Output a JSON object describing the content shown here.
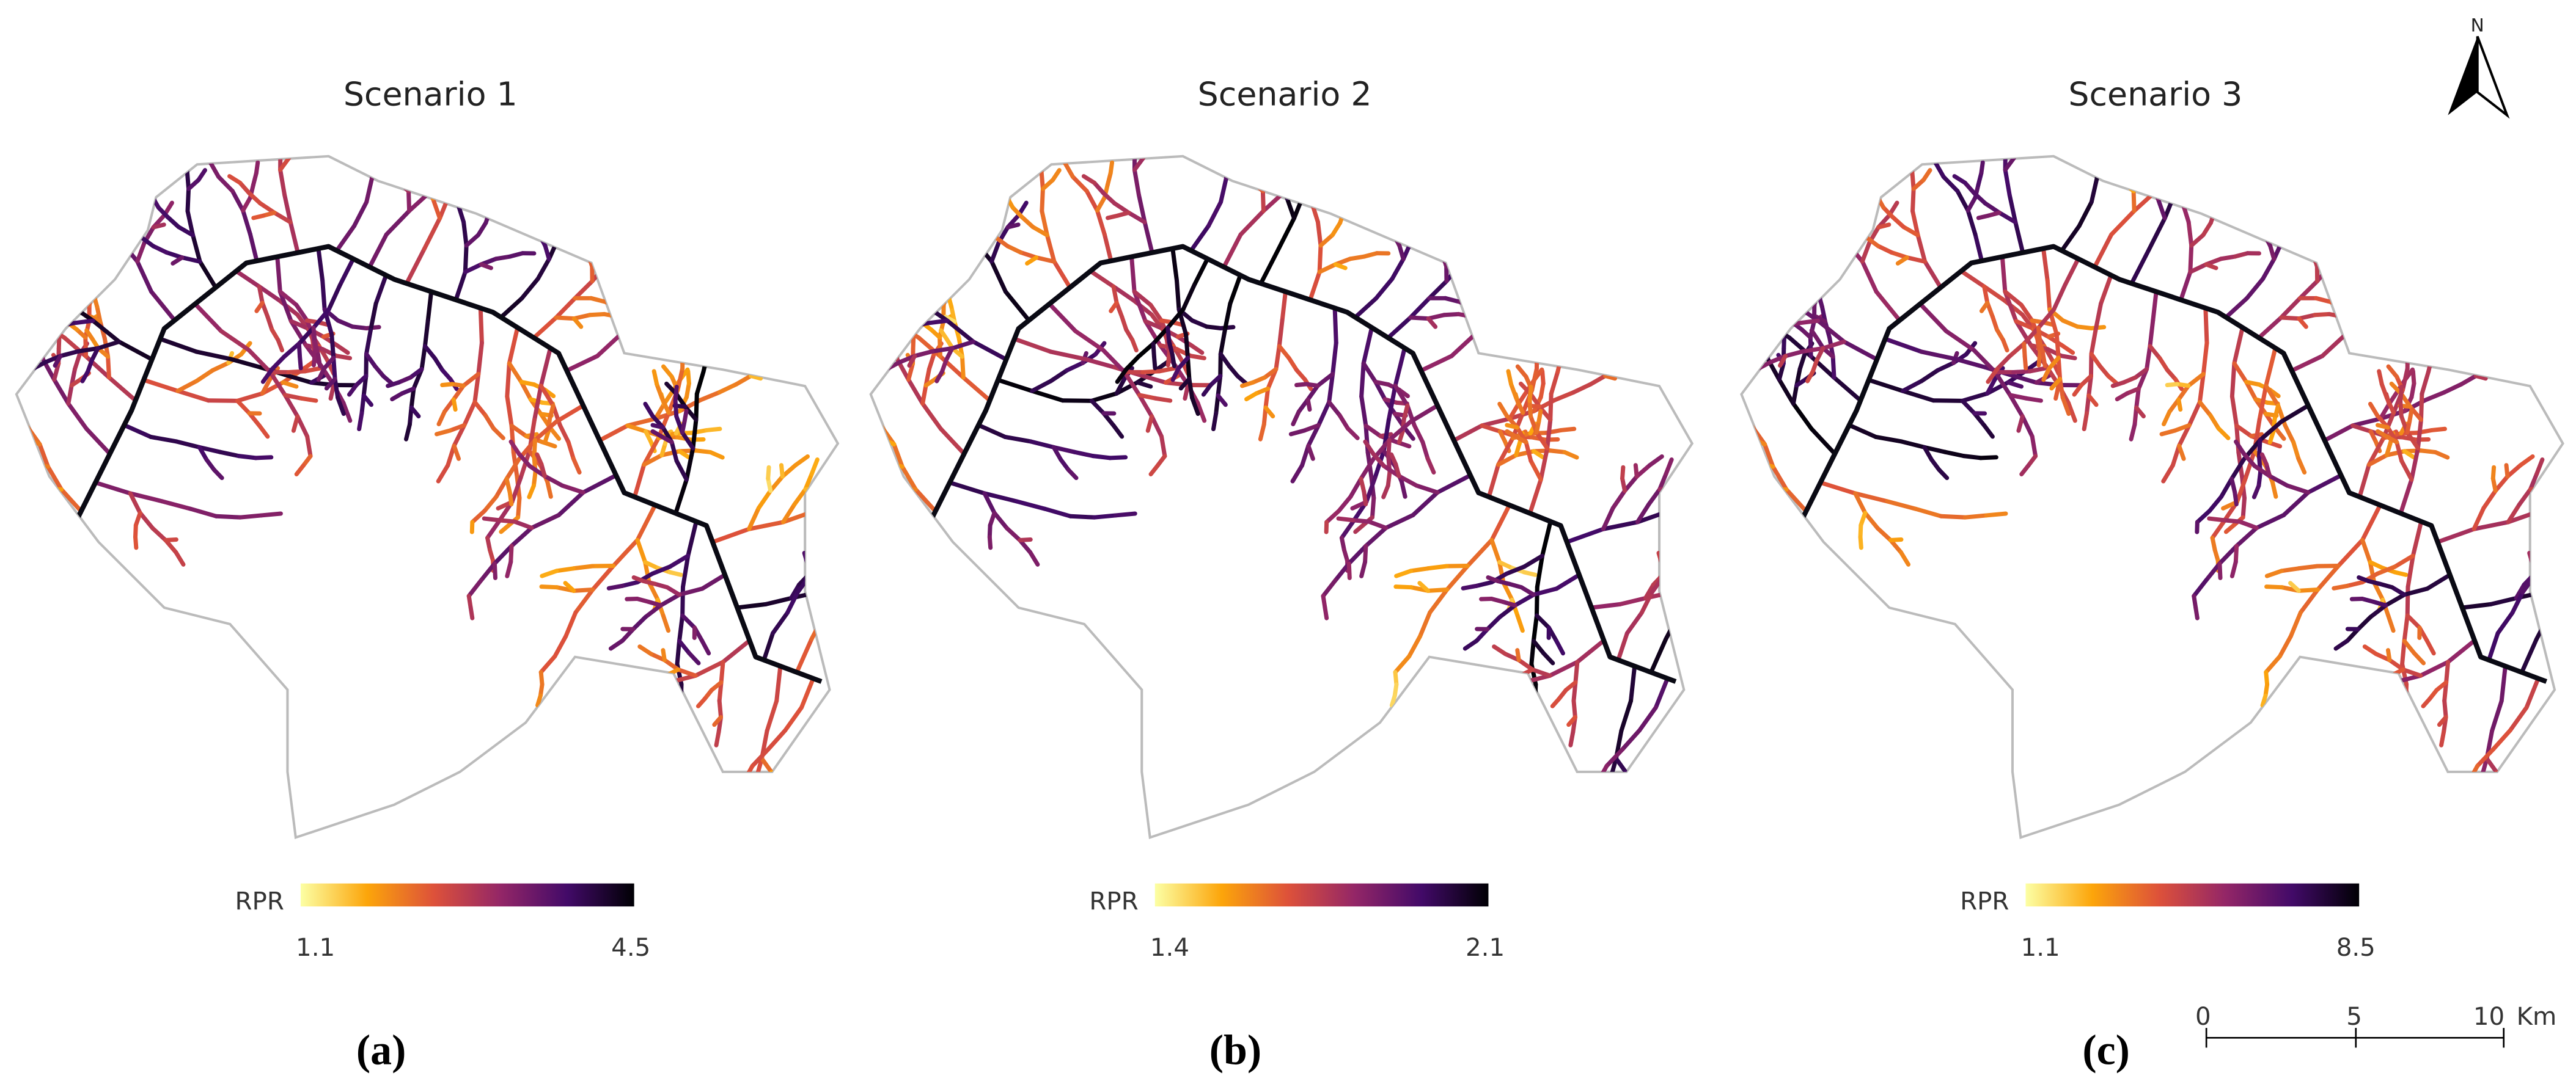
{
  "panels": [
    {
      "title": "Scenario 1",
      "legend_label": "RPR",
      "min": 1.1,
      "max": 4.5,
      "caption": "(a)"
    },
    {
      "title": "Scenario 2",
      "legend_label": "RPR",
      "min": 1.4,
      "max": 2.1,
      "caption": "(b)"
    },
    {
      "title": "Scenario 3",
      "legend_label": "RPR",
      "min": 1.1,
      "max": 8.5,
      "caption": "(c)"
    }
  ],
  "north_arrow": {
    "label": "N"
  },
  "scale_bar": {
    "ticks": [
      0,
      5,
      10
    ],
    "unit": "Km"
  }
}
